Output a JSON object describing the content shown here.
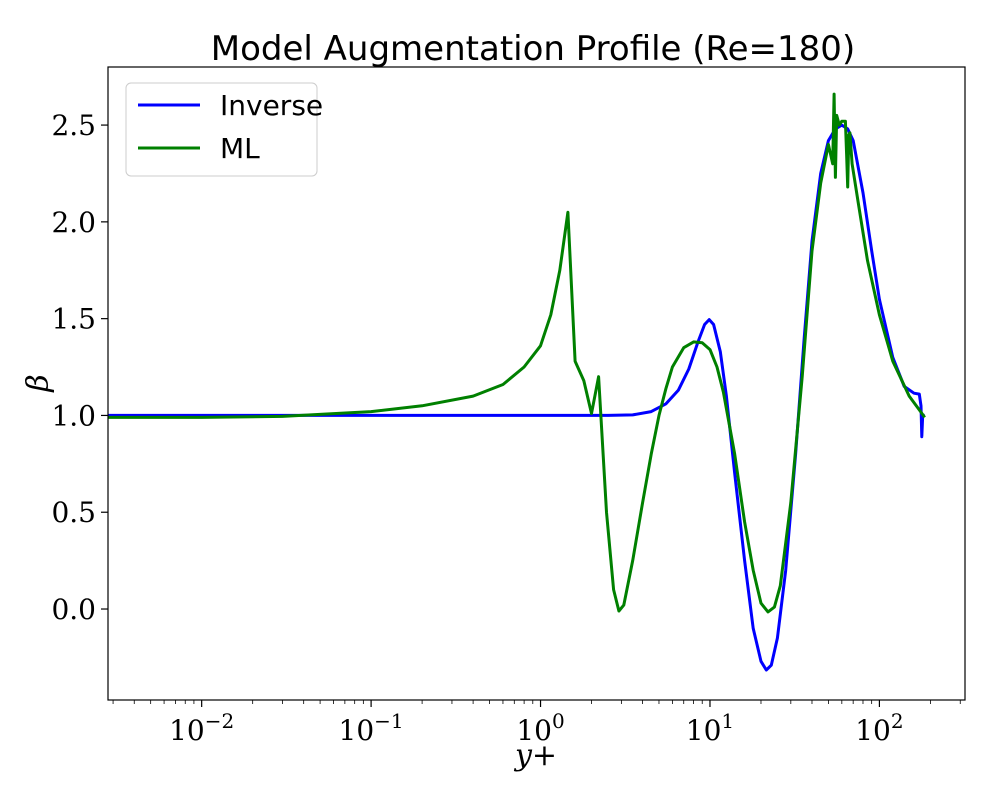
{
  "chart_data": {
    "type": "line",
    "title": "Model Augmentation Profile (Re=180)",
    "xlabel": "y+",
    "ylabel": "β",
    "xscale": "log",
    "xlim": [
      0.0028,
      320
    ],
    "ylim": [
      -0.47,
      2.8
    ],
    "x_ticks": [
      0.01,
      0.1,
      1,
      10,
      100
    ],
    "x_tick_labels": [
      {
        "base": "10",
        "exp": "−2"
      },
      {
        "base": "10",
        "exp": "−1"
      },
      {
        "base": "10",
        "exp": "0"
      },
      {
        "base": "10",
        "exp": "1"
      },
      {
        "base": "10",
        "exp": "2"
      }
    ],
    "y_ticks": [
      0.0,
      0.5,
      1.0,
      1.5,
      2.0,
      2.5
    ],
    "y_tick_labels": [
      "0.0",
      "0.5",
      "1.0",
      "1.5",
      "2.0",
      "2.5"
    ],
    "grid": false,
    "legend_position": "top-left",
    "series": [
      {
        "name": "Inverse",
        "color": "#0000ff",
        "points": [
          [
            0.0028,
            1.0
          ],
          [
            0.1,
            1.0
          ],
          [
            1.0,
            1.0
          ],
          [
            2.5,
            1.0
          ],
          [
            3.5,
            1.003
          ],
          [
            4.5,
            1.02
          ],
          [
            5.5,
            1.06
          ],
          [
            6.5,
            1.13
          ],
          [
            7.5,
            1.24
          ],
          [
            8.5,
            1.38
          ],
          [
            9.3,
            1.47
          ],
          [
            9.9,
            1.495
          ],
          [
            10.5,
            1.47
          ],
          [
            11.5,
            1.33
          ],
          [
            12.5,
            1.1
          ],
          [
            14.0,
            0.7
          ],
          [
            16.0,
            0.25
          ],
          [
            18.0,
            -0.1
          ],
          [
            20.0,
            -0.27
          ],
          [
            21.5,
            -0.315
          ],
          [
            23.0,
            -0.29
          ],
          [
            25.0,
            -0.15
          ],
          [
            28.0,
            0.2
          ],
          [
            32.0,
            0.8
          ],
          [
            36.0,
            1.4
          ],
          [
            40.0,
            1.9
          ],
          [
            45.0,
            2.25
          ],
          [
            50.0,
            2.42
          ],
          [
            55.0,
            2.48
          ],
          [
            60.0,
            2.5
          ],
          [
            65.0,
            2.48
          ],
          [
            70.0,
            2.42
          ],
          [
            80.0,
            2.15
          ],
          [
            90.0,
            1.85
          ],
          [
            100.0,
            1.6
          ],
          [
            120.0,
            1.3
          ],
          [
            140.0,
            1.15
          ],
          [
            160.0,
            1.115
          ],
          [
            172.0,
            1.11
          ],
          [
            176.0,
            1.05
          ],
          [
            178.0,
            0.89
          ],
          [
            180.0,
            1.0
          ],
          [
            185.0,
            1.0
          ]
        ]
      },
      {
        "name": "ML",
        "color": "#008000",
        "points": [
          [
            0.0028,
            0.99
          ],
          [
            0.01,
            0.99
          ],
          [
            0.03,
            0.995
          ],
          [
            0.1,
            1.02
          ],
          [
            0.2,
            1.05
          ],
          [
            0.4,
            1.1
          ],
          [
            0.6,
            1.16
          ],
          [
            0.8,
            1.25
          ],
          [
            1.0,
            1.36
          ],
          [
            1.15,
            1.52
          ],
          [
            1.3,
            1.75
          ],
          [
            1.45,
            2.05
          ],
          [
            1.6,
            1.28
          ],
          [
            1.8,
            1.18
          ],
          [
            2.0,
            1.01
          ],
          [
            2.2,
            1.2
          ],
          [
            2.45,
            0.5
          ],
          [
            2.7,
            0.1
          ],
          [
            2.9,
            -0.01
          ],
          [
            3.1,
            0.02
          ],
          [
            3.5,
            0.25
          ],
          [
            4.0,
            0.55
          ],
          [
            4.5,
            0.8
          ],
          [
            5.0,
            1.0
          ],
          [
            5.5,
            1.14
          ],
          [
            6.0,
            1.25
          ],
          [
            7.0,
            1.35
          ],
          [
            8.0,
            1.38
          ],
          [
            9.0,
            1.375
          ],
          [
            10.0,
            1.34
          ],
          [
            11.0,
            1.25
          ],
          [
            12.0,
            1.12
          ],
          [
            14.0,
            0.8
          ],
          [
            16.0,
            0.45
          ],
          [
            18.0,
            0.2
          ],
          [
            20.0,
            0.03
          ],
          [
            22.0,
            -0.015
          ],
          [
            24.0,
            0.01
          ],
          [
            26.0,
            0.12
          ],
          [
            30.0,
            0.55
          ],
          [
            35.0,
            1.2
          ],
          [
            40.0,
            1.85
          ],
          [
            45.0,
            2.2
          ],
          [
            50.0,
            2.4
          ],
          [
            53.0,
            2.3
          ],
          [
            54.0,
            2.66
          ],
          [
            55.0,
            2.23
          ],
          [
            56.0,
            2.55
          ],
          [
            58.0,
            2.5
          ],
          [
            60.0,
            2.52
          ],
          [
            63.0,
            2.52
          ],
          [
            64.0,
            2.35
          ],
          [
            65.0,
            2.18
          ],
          [
            66.0,
            2.45
          ],
          [
            67.0,
            2.46
          ],
          [
            69.0,
            2.3
          ],
          [
            75.0,
            2.1
          ],
          [
            85.0,
            1.8
          ],
          [
            100.0,
            1.52
          ],
          [
            120.0,
            1.28
          ],
          [
            150.0,
            1.1
          ],
          [
            175.0,
            1.02
          ],
          [
            185.0,
            0.99
          ]
        ]
      }
    ]
  }
}
